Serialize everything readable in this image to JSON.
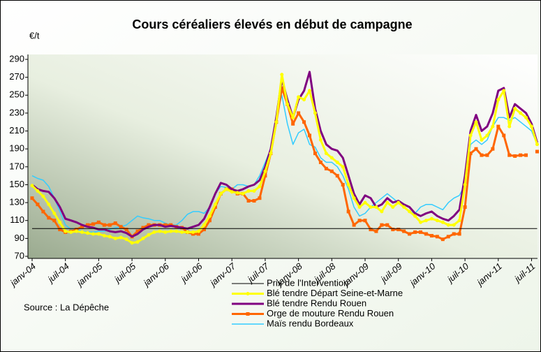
{
  "chart_data": {
    "type": "line",
    "title": "Cours céréaliers élevés en début de campagne",
    "y_label": "€/t",
    "source": "Source : La Dépêche",
    "categories": [
      "janv-04",
      null,
      null,
      null,
      null,
      null,
      "juil-04",
      null,
      null,
      null,
      null,
      null,
      "janv-05",
      null,
      null,
      null,
      null,
      null,
      "juil-05",
      null,
      null,
      null,
      null,
      null,
      "janv-06",
      null,
      null,
      null,
      null,
      null,
      "juil-06",
      null,
      null,
      null,
      null,
      null,
      "janv-07",
      null,
      null,
      null,
      null,
      null,
      "juil-07",
      null,
      null,
      null,
      null,
      null,
      "janv-08",
      null,
      null,
      null,
      null,
      null,
      "juil-08",
      null,
      null,
      null,
      null,
      null,
      "janv-09",
      null,
      null,
      null,
      null,
      null,
      "juil-09",
      null,
      null,
      null,
      null,
      null,
      "janv-10",
      null,
      null,
      null,
      null,
      null,
      "juil-10",
      null,
      null,
      null,
      null,
      null,
      "janv-11",
      null,
      null,
      null,
      null,
      null,
      "juil-11",
      null
    ],
    "ylim": [
      70,
      290
    ],
    "yticks": [
      70,
      90,
      110,
      130,
      150,
      170,
      190,
      210,
      230,
      250,
      270,
      290
    ],
    "grid": false,
    "legend": "bottom",
    "series": [
      {
        "name": "Prix de l'Intervention",
        "color": "#000000",
        "width": 1,
        "marker": "none",
        "values": [
          101,
          101,
          101,
          101,
          101,
          101,
          101,
          101,
          101,
          101,
          101,
          101,
          101,
          101,
          101,
          101,
          101,
          101,
          101,
          101,
          101,
          101,
          101,
          101,
          101,
          101,
          101,
          101,
          101,
          101,
          101,
          101,
          101,
          101,
          101,
          101,
          101,
          101,
          101,
          101,
          101,
          101,
          101,
          101,
          101,
          101,
          101,
          101,
          101,
          101,
          101,
          101,
          101,
          101,
          101,
          101,
          101,
          101,
          101,
          101,
          101,
          101,
          101,
          101,
          101,
          101,
          101,
          101,
          101,
          101,
          101,
          101,
          101,
          101,
          101,
          101,
          101,
          101,
          101,
          101,
          101,
          101,
          101,
          101,
          101,
          101,
          101,
          101,
          101,
          101,
          101,
          101
        ]
      },
      {
        "name": "Blé tendre Départ Seine-et-Marne",
        "color": "#ffff00",
        "width": 3,
        "marker": "circle",
        "values": [
          149,
          143,
          137,
          128,
          118,
          108,
          98,
          97,
          98,
          97,
          96,
          95,
          95,
          93,
          92,
          90,
          91,
          89,
          85,
          86,
          90,
          94,
          97,
          98,
          97,
          98,
          98,
          97,
          97,
          97,
          98,
          105,
          115,
          128,
          140,
          145,
          142,
          141,
          140,
          143,
          143,
          148,
          165,
          185,
          220,
          273,
          240,
          225,
          248,
          245,
          255,
          230,
          200,
          185,
          180,
          175,
          170,
          150,
          135,
          125,
          130,
          125,
          125,
          120,
          130,
          125,
          130,
          125,
          120,
          115,
          108,
          110,
          112,
          110,
          108,
          105,
          105,
          110,
          150,
          205,
          220,
          200,
          205,
          215,
          245,
          255,
          215,
          235,
          230,
          225,
          215,
          195
        ]
      },
      {
        "name": "Blé tendre Rendu Rouen",
        "color": "#800080",
        "width": 3,
        "marker": "none",
        "values": [
          150,
          145,
          143,
          142,
          135,
          125,
          112,
          110,
          108,
          105,
          103,
          102,
          100,
          100,
          98,
          97,
          98,
          96,
          92,
          95,
          100,
          103,
          105,
          105,
          103,
          104,
          103,
          102,
          101,
          103,
          105,
          112,
          125,
          140,
          152,
          150,
          145,
          143,
          145,
          148,
          150,
          155,
          170,
          190,
          225,
          268,
          245,
          225,
          245,
          255,
          276,
          235,
          210,
          195,
          190,
          188,
          180,
          160,
          140,
          128,
          138,
          135,
          125,
          128,
          135,
          130,
          132,
          128,
          125,
          118,
          115,
          118,
          120,
          115,
          112,
          110,
          115,
          122,
          160,
          210,
          228,
          210,
          215,
          230,
          255,
          258,
          225,
          240,
          235,
          230,
          218,
          197
        ]
      },
      {
        "name": "Orge de mouture Rendu Rouen",
        "color": "#ff6600",
        "width": 3,
        "marker": "square",
        "values": [
          135,
          128,
          120,
          113,
          110,
          100,
          97,
          98,
          100,
          103,
          105,
          106,
          108,
          105,
          105,
          107,
          103,
          100,
          92,
          98,
          102,
          105,
          105,
          105,
          105,
          105,
          103,
          102,
          97,
          95,
          95,
          100,
          110,
          125,
          140,
          145,
          145,
          140,
          140,
          132,
          132,
          135,
          160,
          185,
          220,
          258,
          240,
          218,
          230,
          220,
          205,
          185,
          175,
          168,
          165,
          160,
          150,
          120,
          105,
          110,
          110,
          100,
          98,
          105,
          105,
          100,
          100,
          98,
          95,
          97,
          97,
          95,
          93,
          92,
          89,
          92,
          95,
          95,
          125,
          185,
          190,
          183,
          183,
          190,
          215,
          205,
          183,
          182,
          183,
          183,
          null,
          187
        ]
      },
      {
        "name": "Maïs rendu Bordeaux",
        "color": "#33ccff",
        "width": 1.5,
        "marker": "none",
        "values": [
          160,
          157,
          155,
          148,
          135,
          120,
          105,
          100,
          100,
          98,
          97,
          97,
          98,
          98,
          100,
          102,
          103,
          105,
          110,
          115,
          113,
          112,
          110,
          110,
          107,
          105,
          105,
          110,
          117,
          120,
          120,
          118,
          125,
          140,
          148,
          147,
          145,
          150,
          150,
          148,
          150,
          160,
          175,
          190,
          225,
          250,
          218,
          195,
          208,
          212,
          195,
          192,
          180,
          175,
          175,
          170,
          160,
          145,
          125,
          115,
          118,
          125,
          130,
          135,
          140,
          135,
          130,
          125,
          120,
          118,
          125,
          128,
          128,
          125,
          122,
          130,
          135,
          138,
          150,
          195,
          200,
          195,
          200,
          215,
          225,
          225,
          222,
          225,
          220,
          215,
          210,
          195
        ]
      }
    ]
  }
}
